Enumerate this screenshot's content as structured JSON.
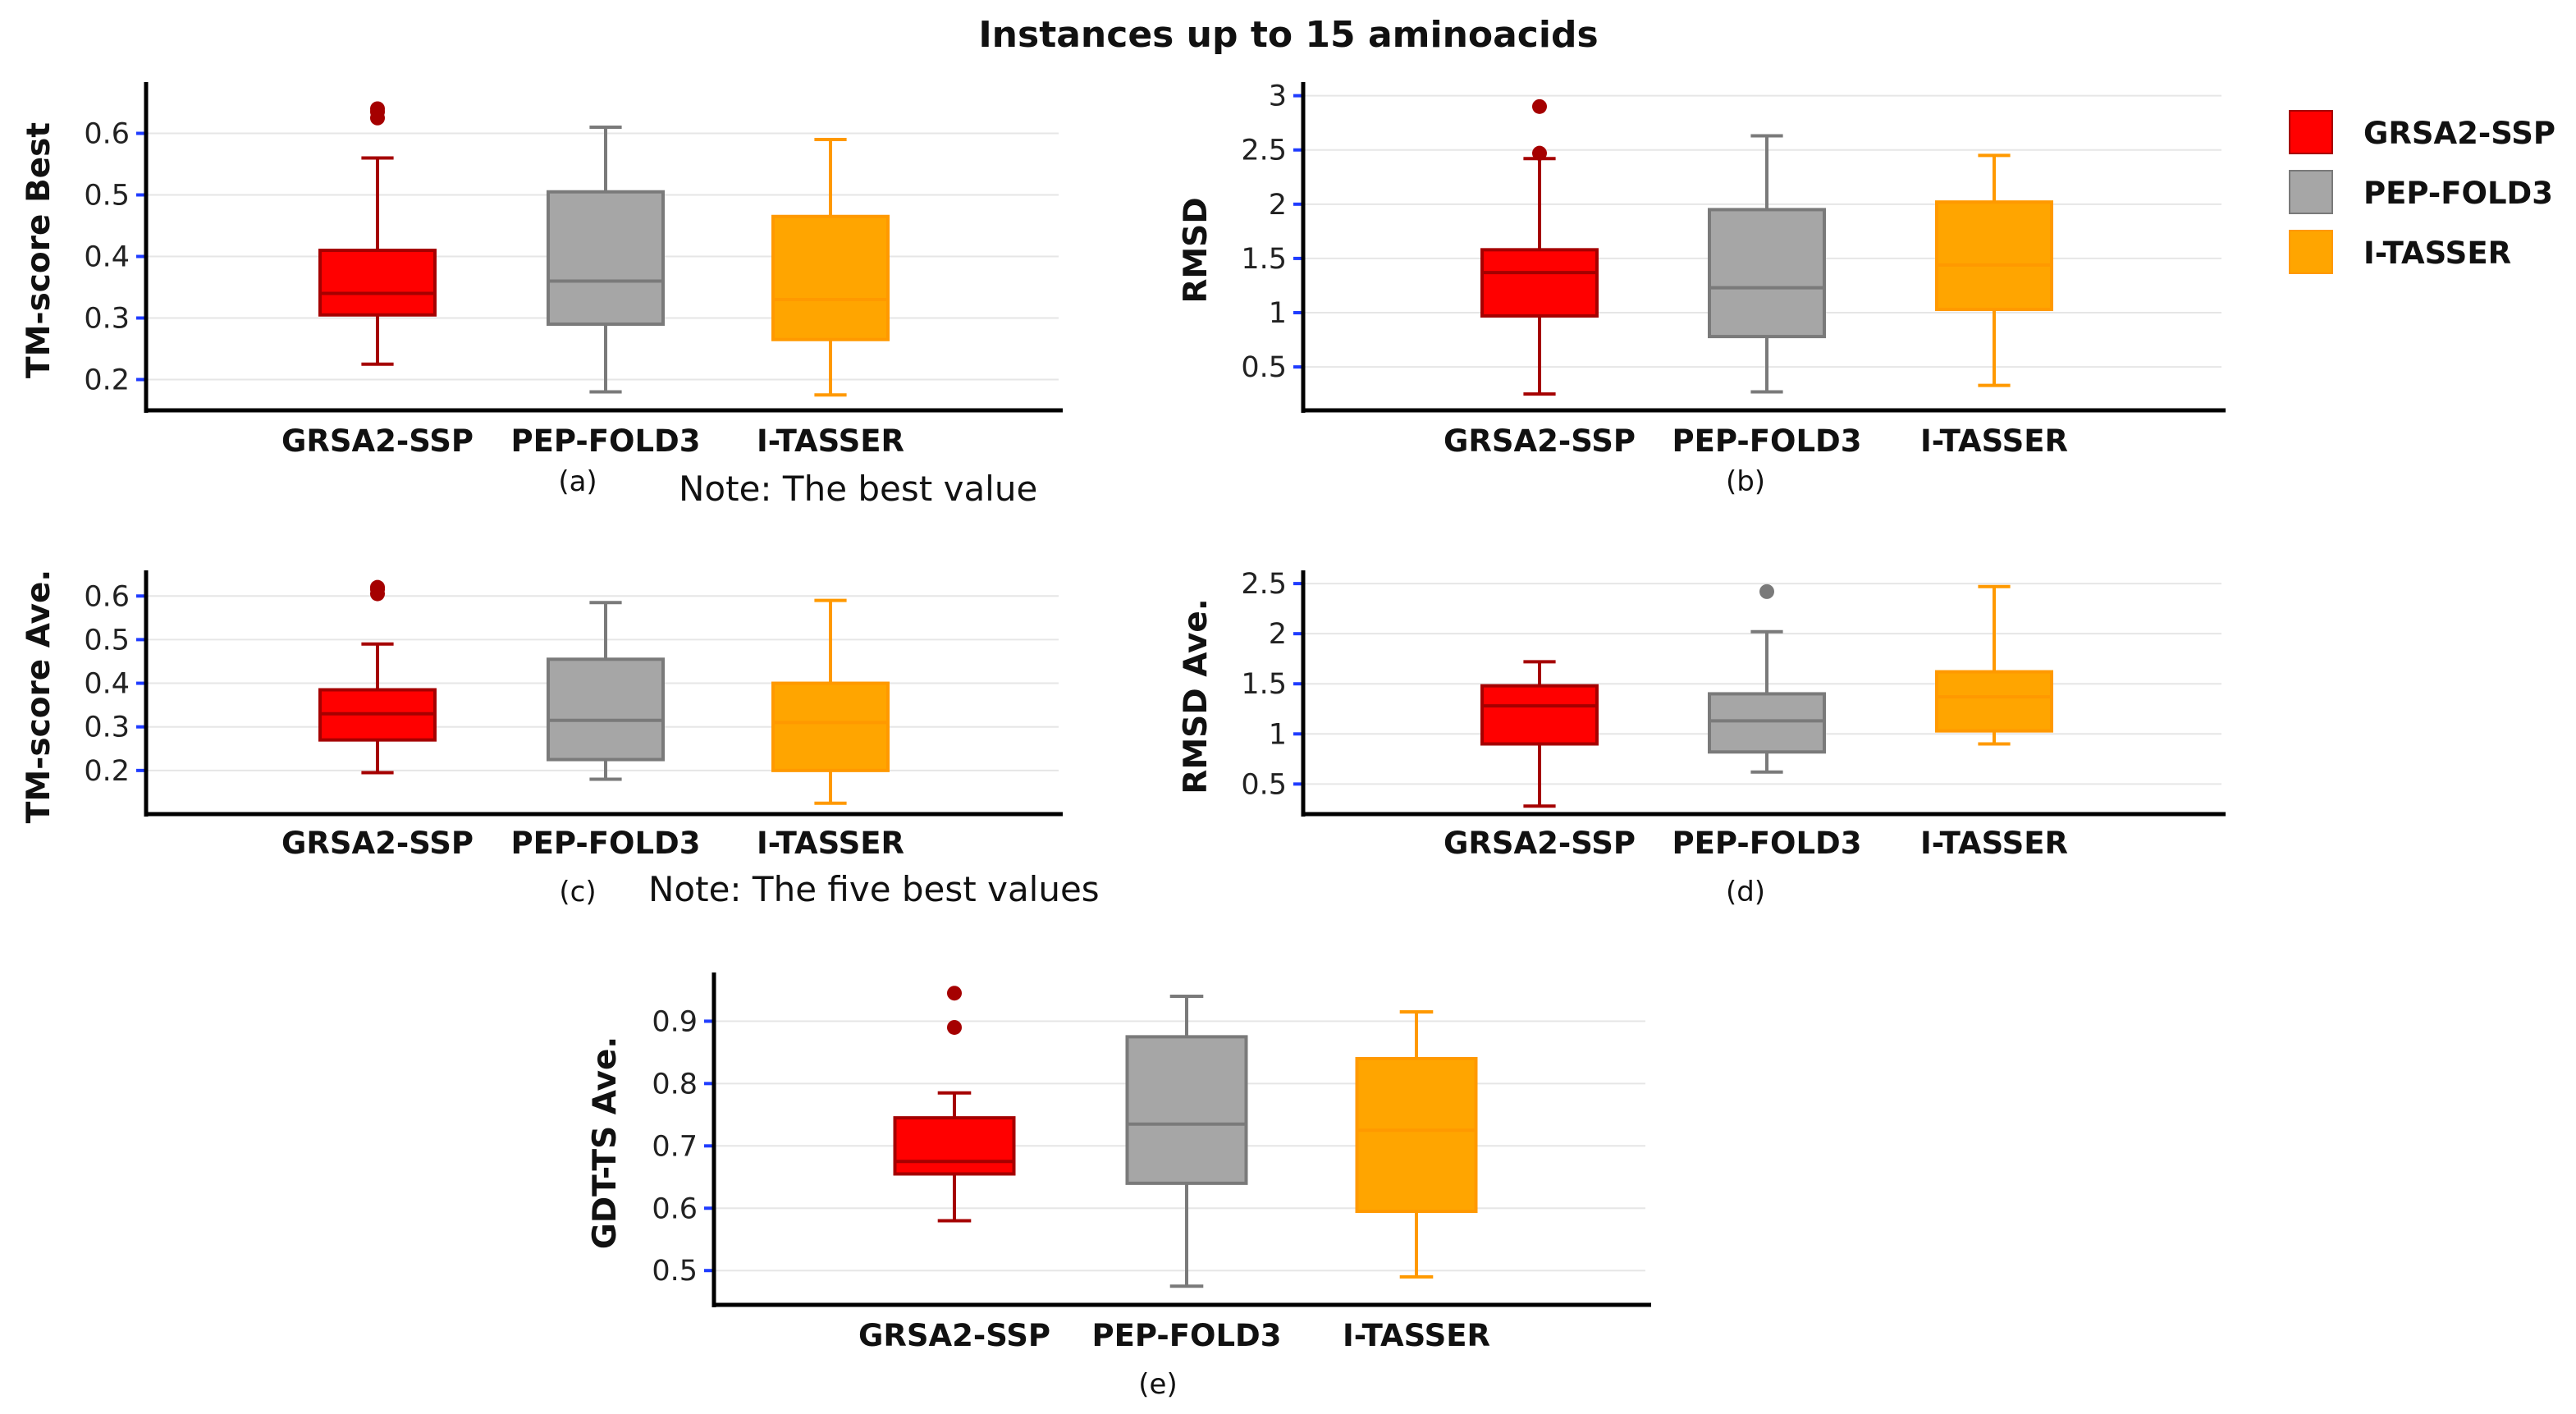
{
  "title": "Instances up to 15 aminoacids",
  "legend": [
    {
      "label": "GRSA2-SSP",
      "fill": "#ff0000",
      "stroke": "#a50000"
    },
    {
      "label": "PEP-FOLD3",
      "fill": "#a6a6a6",
      "stroke": "#7a7a7a"
    },
    {
      "label": "I-TASSER",
      "fill": "#ffa500",
      "stroke": "#ff9900"
    }
  ],
  "notes": {
    "row1": "Note: The best value",
    "row2": "Note: The five best values"
  },
  "chart_data": [
    {
      "id": "a",
      "type": "box",
      "caption": "(a)",
      "ylabel": "TM-score Best",
      "ylim": [
        0.15,
        0.67
      ],
      "yticks": [
        0.2,
        0.3,
        0.4,
        0.5,
        0.6
      ],
      "tick_labels": [
        "0.2",
        "0.3",
        "0.4",
        "0.5",
        "0.6"
      ],
      "categories": [
        "GRSA2-SSP",
        "PEP-FOLD3",
        "I-TASSER"
      ],
      "series": [
        {
          "name": "GRSA2-SSP",
          "min": 0.225,
          "q1": 0.305,
          "median": 0.34,
          "q3": 0.41,
          "max": 0.56,
          "outliers": [
            0.625,
            0.635,
            0.64
          ]
        },
        {
          "name": "PEP-FOLD3",
          "min": 0.18,
          "q1": 0.29,
          "median": 0.36,
          "q3": 0.505,
          "max": 0.61,
          "outliers": []
        },
        {
          "name": "I-TASSER",
          "min": 0.175,
          "q1": 0.265,
          "median": 0.33,
          "q3": 0.465,
          "max": 0.59,
          "outliers": []
        }
      ]
    },
    {
      "id": "b",
      "type": "box",
      "caption": "(b)",
      "ylabel": "RMSD",
      "ylim": [
        0.1,
        3.05
      ],
      "yticks": [
        0.5,
        1,
        1.5,
        2,
        2.5,
        3
      ],
      "tick_labels": [
        "0.5",
        "1",
        "1.5",
        "2",
        "2.5",
        "3"
      ],
      "categories": [
        "GRSA2-SSP",
        "PEP-FOLD3",
        "I-TASSER"
      ],
      "series": [
        {
          "name": "GRSA2-SSP",
          "min": 0.25,
          "q1": 0.97,
          "median": 1.37,
          "q3": 1.58,
          "max": 2.42,
          "outliers": [
            2.47,
            2.9
          ]
        },
        {
          "name": "PEP-FOLD3",
          "min": 0.27,
          "q1": 0.78,
          "median": 1.23,
          "q3": 1.95,
          "max": 2.63,
          "outliers": []
        },
        {
          "name": "I-TASSER",
          "min": 0.33,
          "q1": 1.03,
          "median": 1.44,
          "q3": 2.02,
          "max": 2.45,
          "outliers": []
        }
      ]
    },
    {
      "id": "c",
      "type": "box",
      "caption": "(c)",
      "ylabel": "TM-score Ave.",
      "ylim": [
        0.1,
        0.64
      ],
      "yticks": [
        0.2,
        0.3,
        0.4,
        0.5,
        0.6
      ],
      "tick_labels": [
        "0.2",
        "0.3",
        "0.4",
        "0.5",
        "0.6"
      ],
      "categories": [
        "GRSA2-SSP",
        "PEP-FOLD3",
        "I-TASSER"
      ],
      "series": [
        {
          "name": "GRSA2-SSP",
          "min": 0.195,
          "q1": 0.27,
          "median": 0.33,
          "q3": 0.385,
          "max": 0.49,
          "outliers": [
            0.605,
            0.615,
            0.62
          ]
        },
        {
          "name": "PEP-FOLD3",
          "min": 0.18,
          "q1": 0.225,
          "median": 0.315,
          "q3": 0.455,
          "max": 0.585,
          "outliers": []
        },
        {
          "name": "I-TASSER",
          "min": 0.125,
          "q1": 0.2,
          "median": 0.31,
          "q3": 0.4,
          "max": 0.59,
          "outliers": []
        }
      ]
    },
    {
      "id": "d",
      "type": "box",
      "caption": "(d)",
      "ylabel": "RMSD Ave.",
      "ylim": [
        0.2,
        2.55
      ],
      "yticks": [
        0.5,
        1,
        1.5,
        2,
        2.5
      ],
      "tick_labels": [
        "0.5",
        "1",
        "1.5",
        "2",
        "2.5"
      ],
      "categories": [
        "GRSA2-SSP",
        "PEP-FOLD3",
        "I-TASSER"
      ],
      "series": [
        {
          "name": "GRSA2-SSP",
          "min": 0.28,
          "q1": 0.9,
          "median": 1.28,
          "q3": 1.48,
          "max": 1.72,
          "outliers": []
        },
        {
          "name": "PEP-FOLD3",
          "min": 0.62,
          "q1": 0.82,
          "median": 1.13,
          "q3": 1.4,
          "max": 2.02,
          "outliers": [
            2.42
          ]
        },
        {
          "name": "I-TASSER",
          "min": 0.9,
          "q1": 1.03,
          "median": 1.37,
          "q3": 1.62,
          "max": 2.47,
          "outliers": []
        }
      ]
    },
    {
      "id": "e",
      "type": "box",
      "caption": "(e)",
      "ylabel": "GDT-TS Ave.",
      "ylim": [
        0.445,
        0.965
      ],
      "yticks": [
        0.5,
        0.6,
        0.7,
        0.8,
        0.9
      ],
      "tick_labels": [
        "0.5",
        "0.6",
        "0.7",
        "0.8",
        "0.9"
      ],
      "categories": [
        "GRSA2-SSP",
        "PEP-FOLD3",
        "I-TASSER"
      ],
      "series": [
        {
          "name": "GRSA2-SSP",
          "min": 0.58,
          "q1": 0.655,
          "median": 0.675,
          "q3": 0.745,
          "max": 0.785,
          "outliers": [
            0.89,
            0.945
          ]
        },
        {
          "name": "PEP-FOLD3",
          "min": 0.475,
          "q1": 0.64,
          "median": 0.735,
          "q3": 0.875,
          "max": 0.94,
          "outliers": []
        },
        {
          "name": "I-TASSER",
          "min": 0.49,
          "q1": 0.595,
          "median": 0.725,
          "q3": 0.84,
          "max": 0.915,
          "outliers": []
        }
      ]
    }
  ]
}
